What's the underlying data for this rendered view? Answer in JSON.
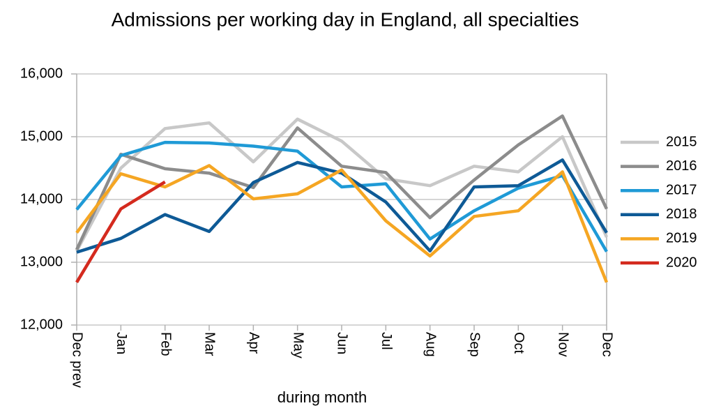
{
  "chart_data": {
    "type": "line",
    "title": "Admissions per working day in England, all specialties",
    "x_label": "during month",
    "categories": [
      "Dec prev",
      "Jan",
      "Feb",
      "Mar",
      "Apr",
      "May",
      "Jun",
      "Jul",
      "Aug",
      "Sep",
      "Oct",
      "Nov",
      "Dec"
    ],
    "series": [
      {
        "name": "2015",
        "color": "#c8c8c8",
        "values": [
          13180,
          14500,
          15130,
          15220,
          14600,
          15280,
          14930,
          14330,
          14220,
          14530,
          14440,
          15000,
          13400
        ]
      },
      {
        "name": "2016",
        "color": "#8c8c8c",
        "values": [
          13200,
          14720,
          14490,
          14420,
          14190,
          15140,
          14530,
          14430,
          13710,
          14310,
          14870,
          15330,
          13850
        ]
      },
      {
        "name": "2017",
        "color": "#1f9ad6",
        "values": [
          13840,
          14700,
          14910,
          14900,
          14850,
          14770,
          14200,
          14250,
          13370,
          13820,
          14180,
          14380,
          13170
        ]
      },
      {
        "name": "2018",
        "color": "#0e5a96",
        "values": [
          13160,
          13380,
          13760,
          13490,
          14270,
          14590,
          14420,
          13960,
          13180,
          14200,
          14220,
          14630,
          13470
        ]
      },
      {
        "name": "2019",
        "color": "#f5a623",
        "values": [
          13470,
          14410,
          14200,
          14540,
          14010,
          14090,
          14470,
          13660,
          13100,
          13730,
          13820,
          14440,
          12680
        ]
      },
      {
        "name": "2020",
        "color": "#d42a1e",
        "values": [
          12680,
          13850,
          14280,
          null,
          null,
          null,
          null,
          null,
          null,
          null,
          null,
          null,
          null
        ]
      }
    ],
    "ylim": [
      12000,
      16000
    ],
    "yticks": [
      {
        "value": 12000,
        "label": "12,000"
      },
      {
        "value": 13000,
        "label": "13,000"
      },
      {
        "value": 14000,
        "label": "14,000"
      },
      {
        "value": 15000,
        "label": "15,000"
      },
      {
        "value": 16000,
        "label": "16,000"
      }
    ],
    "grid": true,
    "legend": "right"
  }
}
